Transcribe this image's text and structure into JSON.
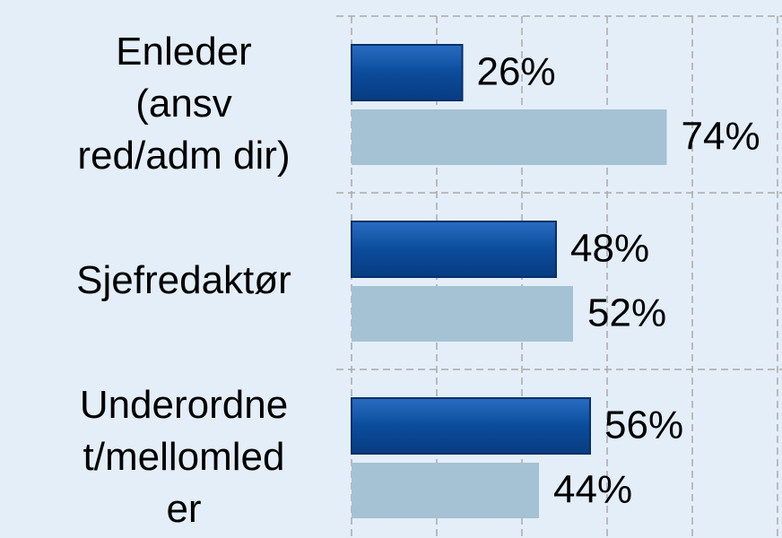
{
  "chart_data": {
    "type": "bar",
    "orientation": "horizontal",
    "categories": [
      [
        "Enleder",
        "(ansv",
        "red/adm dir)"
      ],
      [
        "Sjefredaktør"
      ],
      [
        "Underordne",
        "t/mellomled",
        "er"
      ]
    ],
    "series": [
      {
        "color": "#0b4c9c",
        "values": [
          26,
          48,
          56
        ],
        "value_labels": [
          "26%",
          "48%",
          "56%"
        ]
      },
      {
        "color": "#a4c2d3",
        "values": [
          74,
          52,
          44
        ],
        "value_labels": [
          "74%",
          "52%",
          "44%"
        ]
      }
    ],
    "xlim": [
      0,
      100
    ],
    "xticks": [
      0,
      20,
      40,
      60,
      80,
      100
    ],
    "grid": true
  }
}
